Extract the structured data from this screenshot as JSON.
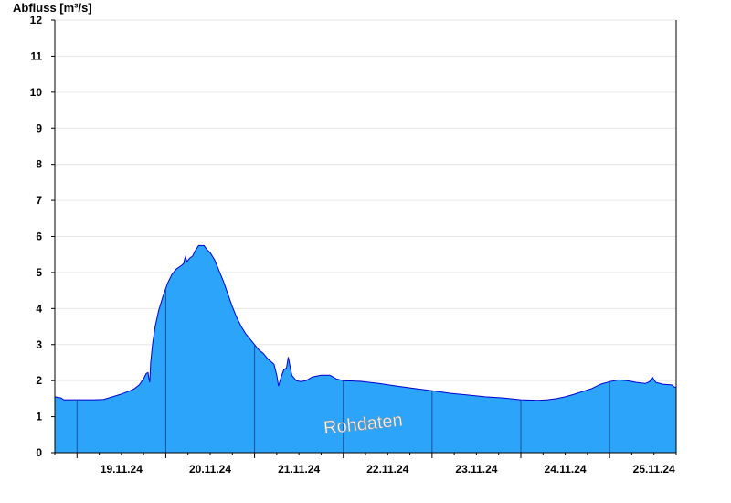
{
  "chart_data": {
    "type": "area",
    "ylabel": "Abfluss [m³/s]",
    "watermark": "Rohdaten",
    "ylim": [
      0,
      12
    ],
    "yticks": [
      "0",
      "1",
      "2",
      "3",
      "4",
      "5",
      "6",
      "7",
      "8",
      "9",
      "10",
      "11",
      "12"
    ],
    "day_labels": [
      "19.11.24",
      "20.11.24",
      "21.11.24",
      "22.11.24",
      "23.11.24",
      "24.11.24",
      "25.11.24"
    ],
    "x_unit": "days since 18.11.24 00:00",
    "x_range": [
      0.75,
      7.75
    ],
    "grid": true,
    "colors": {
      "fill": "#2ba4fa",
      "line": "#0000cc"
    },
    "series": [
      {
        "points": [
          [
            0.75,
            1.55
          ],
          [
            0.82,
            1.52
          ],
          [
            0.85,
            1.47
          ],
          [
            1.0,
            1.47
          ],
          [
            1.2,
            1.47
          ],
          [
            1.3,
            1.48
          ],
          [
            1.4,
            1.55
          ],
          [
            1.5,
            1.63
          ],
          [
            1.6,
            1.72
          ],
          [
            1.65,
            1.78
          ],
          [
            1.7,
            1.88
          ],
          [
            1.75,
            2.05
          ],
          [
            1.78,
            2.2
          ],
          [
            1.8,
            2.22
          ],
          [
            1.81,
            2.05
          ],
          [
            1.82,
            1.95
          ],
          [
            1.83,
            2.5
          ],
          [
            1.85,
            3.0
          ],
          [
            1.88,
            3.5
          ],
          [
            1.92,
            3.95
          ],
          [
            1.97,
            4.35
          ],
          [
            2.02,
            4.7
          ],
          [
            2.07,
            4.95
          ],
          [
            2.12,
            5.1
          ],
          [
            2.18,
            5.2
          ],
          [
            2.2,
            5.25
          ],
          [
            2.22,
            5.45
          ],
          [
            2.24,
            5.3
          ],
          [
            2.27,
            5.4
          ],
          [
            2.3,
            5.45
          ],
          [
            2.33,
            5.6
          ],
          [
            2.37,
            5.75
          ],
          [
            2.43,
            5.75
          ],
          [
            2.47,
            5.62
          ],
          [
            2.5,
            5.55
          ],
          [
            2.55,
            5.35
          ],
          [
            2.6,
            5.05
          ],
          [
            2.65,
            4.75
          ],
          [
            2.7,
            4.4
          ],
          [
            2.75,
            4.05
          ],
          [
            2.8,
            3.75
          ],
          [
            2.85,
            3.5
          ],
          [
            2.9,
            3.3
          ],
          [
            2.95,
            3.15
          ],
          [
            3.0,
            3.0
          ],
          [
            3.05,
            2.85
          ],
          [
            3.1,
            2.75
          ],
          [
            3.15,
            2.6
          ],
          [
            3.2,
            2.5
          ],
          [
            3.22,
            2.45
          ],
          [
            3.25,
            2.15
          ],
          [
            3.27,
            1.85
          ],
          [
            3.3,
            2.1
          ],
          [
            3.33,
            2.3
          ],
          [
            3.36,
            2.35
          ],
          [
            3.38,
            2.65
          ],
          [
            3.4,
            2.4
          ],
          [
            3.42,
            2.15
          ],
          [
            3.47,
            2.0
          ],
          [
            3.52,
            1.97
          ],
          [
            3.58,
            2.0
          ],
          [
            3.65,
            2.1
          ],
          [
            3.75,
            2.15
          ],
          [
            3.85,
            2.15
          ],
          [
            3.92,
            2.05
          ],
          [
            4.0,
            2.0
          ],
          [
            4.2,
            1.98
          ],
          [
            4.4,
            1.92
          ],
          [
            4.6,
            1.85
          ],
          [
            4.8,
            1.78
          ],
          [
            5.0,
            1.72
          ],
          [
            5.2,
            1.65
          ],
          [
            5.4,
            1.6
          ],
          [
            5.6,
            1.55
          ],
          [
            5.8,
            1.52
          ],
          [
            6.0,
            1.47
          ],
          [
            6.2,
            1.45
          ],
          [
            6.3,
            1.47
          ],
          [
            6.4,
            1.5
          ],
          [
            6.5,
            1.55
          ],
          [
            6.6,
            1.62
          ],
          [
            6.7,
            1.7
          ],
          [
            6.8,
            1.78
          ],
          [
            6.9,
            1.9
          ],
          [
            7.0,
            1.97
          ],
          [
            7.1,
            2.02
          ],
          [
            7.2,
            2.0
          ],
          [
            7.3,
            1.95
          ],
          [
            7.4,
            1.92
          ],
          [
            7.45,
            1.97
          ],
          [
            7.48,
            2.1
          ],
          [
            7.52,
            1.95
          ],
          [
            7.6,
            1.9
          ],
          [
            7.7,
            1.88
          ],
          [
            7.73,
            1.82
          ],
          [
            7.75,
            1.82
          ]
        ]
      }
    ]
  }
}
